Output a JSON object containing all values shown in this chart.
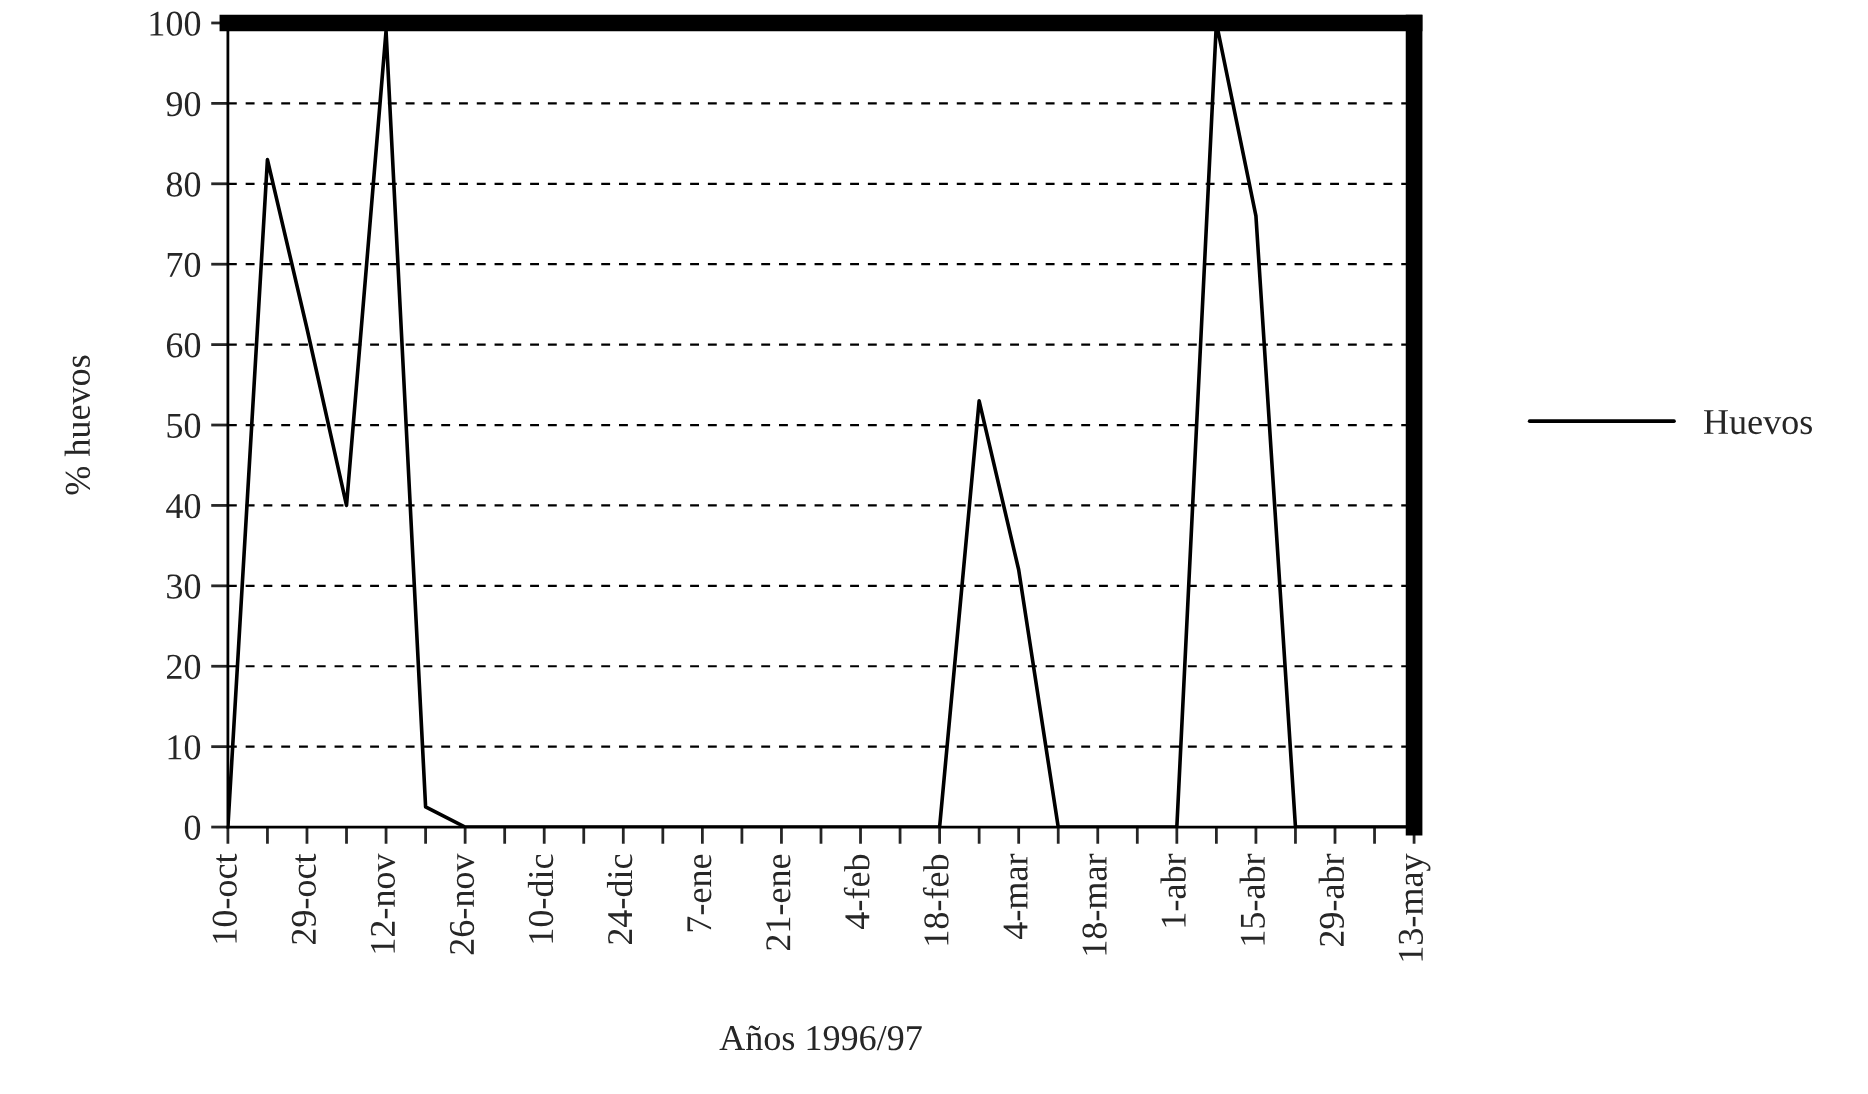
{
  "chart_data": {
    "type": "line",
    "xlabel": "Años 1996/97",
    "ylabel": "% huevos",
    "categories": [
      "10-oct",
      null,
      "29-oct",
      null,
      "12-nov",
      null,
      "26-nov",
      null,
      "10-dic",
      null,
      "24-dic",
      null,
      "7-ene",
      null,
      "21-ene",
      null,
      "4-feb",
      null,
      "18-feb",
      null,
      "4-mar",
      null,
      "18-mar",
      null,
      "1-abr",
      null,
      "15-abr",
      null,
      "29-abr",
      null,
      "13-may"
    ],
    "series": [
      {
        "name": "Huevos",
        "color": "#000000",
        "values": [
          0,
          83,
          62,
          40,
          99,
          2.5,
          0,
          0,
          0,
          0,
          0,
          0,
          0,
          0,
          0,
          0,
          0,
          0,
          0,
          53,
          32,
          0,
          0,
          0,
          0,
          100,
          76,
          0,
          0,
          0,
          0
        ]
      }
    ],
    "ylim": [
      0,
      100
    ],
    "yticks": [
      0,
      10,
      20,
      30,
      40,
      50,
      60,
      70,
      80,
      90,
      100
    ],
    "grid": "y",
    "legend": "right",
    "marker": "none",
    "line_style": "solid"
  }
}
